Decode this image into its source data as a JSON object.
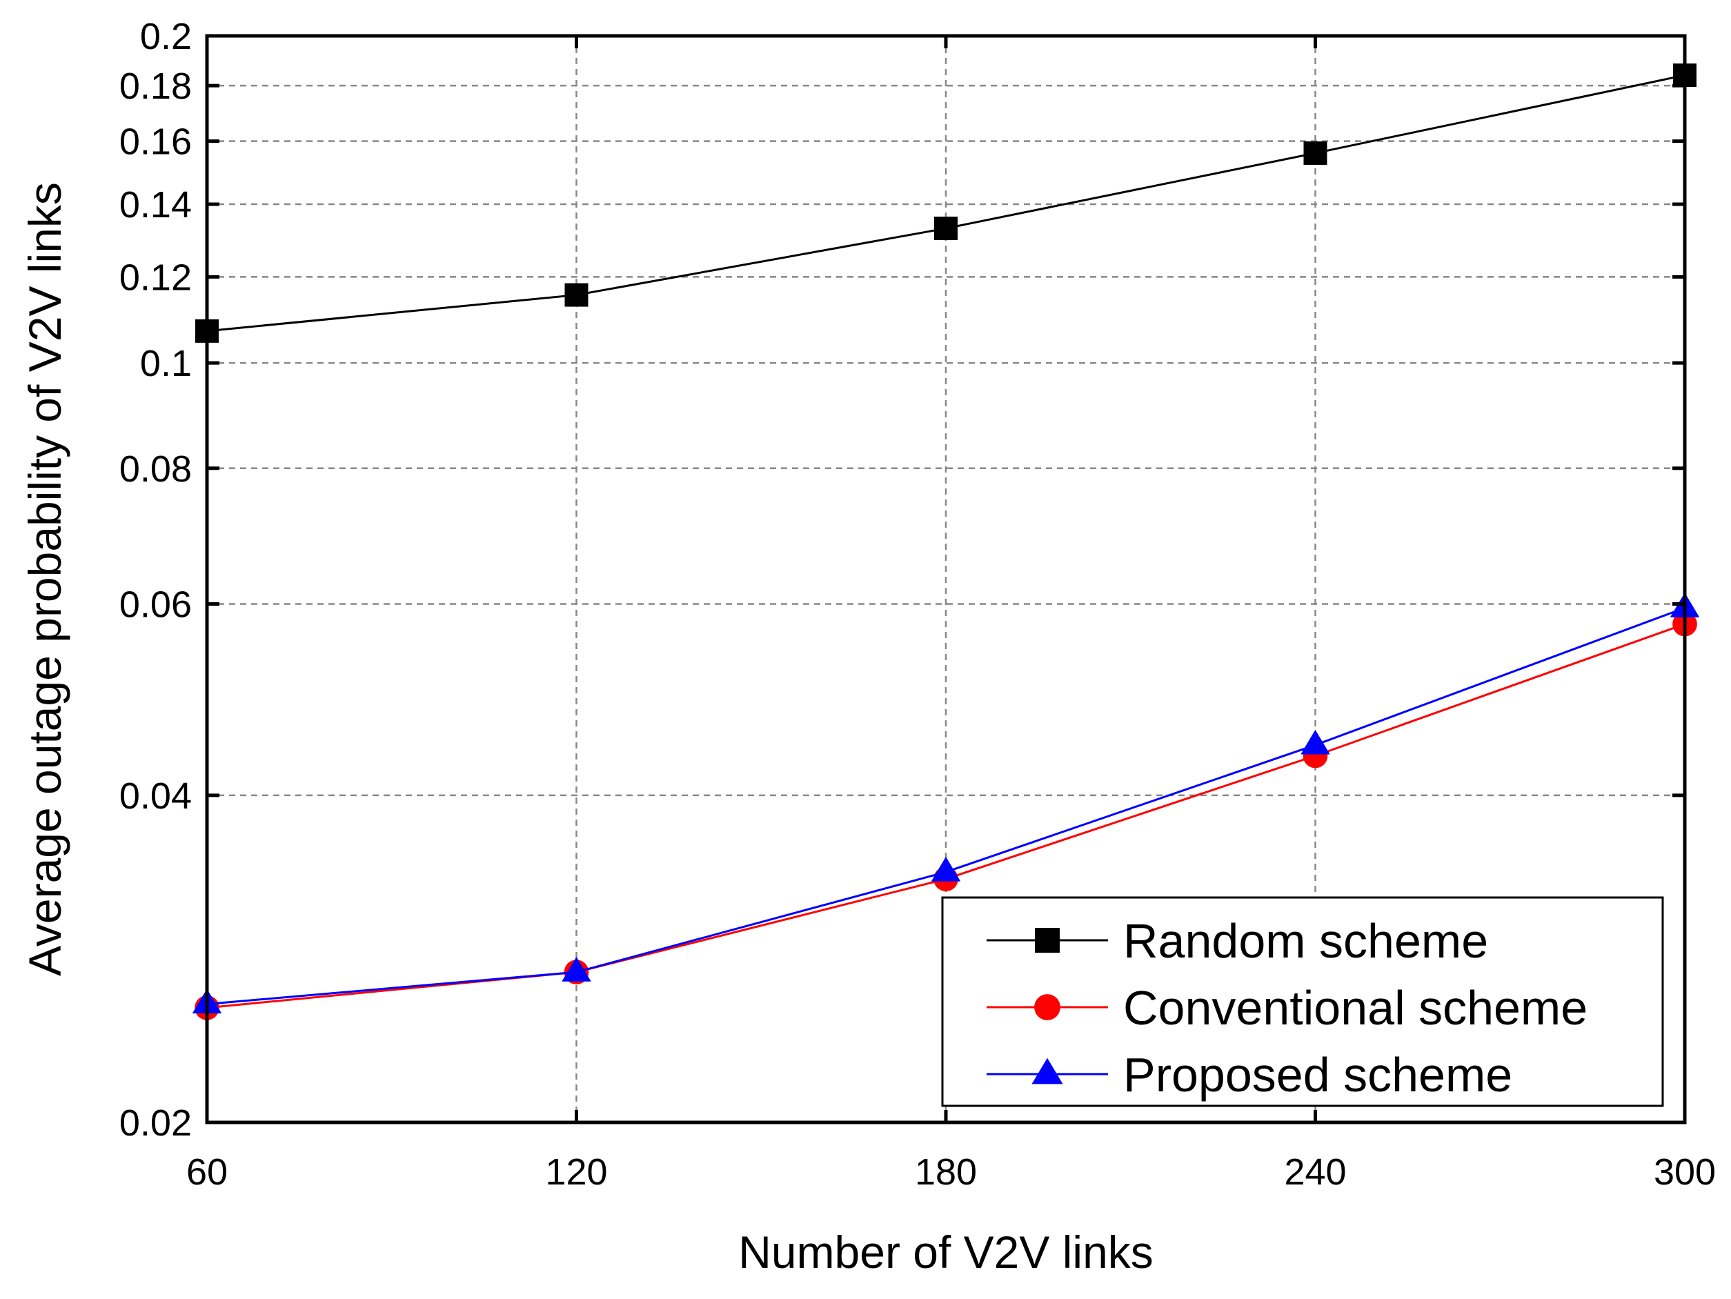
{
  "chart_data": {
    "type": "line",
    "title": "",
    "xlabel": "Number of V2V links",
    "ylabel": "Average outage probability of V2V links",
    "yscale": "log",
    "x": [
      60,
      120,
      180,
      240,
      300
    ],
    "xlim": [
      60,
      300
    ],
    "ylim": [
      0.02,
      0.2
    ],
    "xticks": [
      "60",
      "120",
      "180",
      "240",
      "300"
    ],
    "yticks": [
      {
        "value": 0.02,
        "label": "0.02"
      },
      {
        "value": 0.04,
        "label": "0.04"
      },
      {
        "value": 0.06,
        "label": "0.06"
      },
      {
        "value": 0.08,
        "label": "0.08"
      },
      {
        "value": 0.1,
        "label": "0.1"
      },
      {
        "value": 0.12,
        "label": "0.12"
      },
      {
        "value": 0.14,
        "label": "0.14"
      },
      {
        "value": 0.16,
        "label": "0.16"
      },
      {
        "value": 0.18,
        "label": "0.18"
      },
      {
        "value": 0.2,
        "label": "0.2"
      }
    ],
    "grid": true,
    "legend_position": "bottom-right",
    "series": [
      {
        "name": "Random scheme",
        "marker": "square",
        "color": "#000000",
        "values": [
          0.107,
          0.1155,
          0.133,
          0.156,
          0.184
        ]
      },
      {
        "name": "Conventional scheme",
        "marker": "circle",
        "color": "#ff0000",
        "values": [
          0.0255,
          0.0275,
          0.0335,
          0.0435,
          0.0575
        ]
      },
      {
        "name": "Proposed scheme",
        "marker": "triangle",
        "color": "#0000ff",
        "values": [
          0.0257,
          0.0275,
          0.034,
          0.0445,
          0.0595
        ]
      }
    ]
  }
}
